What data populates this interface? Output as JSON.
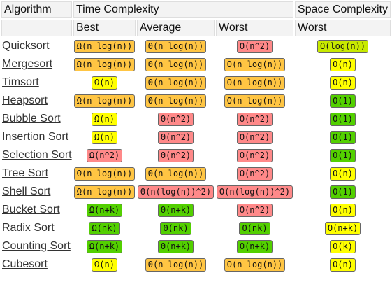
{
  "header": {
    "algorithm": "Algorithm",
    "time_complexity": "Time Complexity",
    "space_complexity": "Space Complexity",
    "best": "Best",
    "average": "Average",
    "worst": "Worst",
    "space_worst": "Worst"
  },
  "colors": {
    "green": "#53d000",
    "yellow-green": "#c8ea00",
    "yellow": "#ffff00",
    "orange": "#ffc543",
    "red": "#ff8989"
  },
  "rows": [
    {
      "name": "Quicksort",
      "best": {
        "text": "Ω(n log(n))",
        "color": "orange"
      },
      "avg": {
        "text": "Θ(n log(n))",
        "color": "orange"
      },
      "worst": {
        "text": "O(n^2)",
        "color": "red"
      },
      "space": {
        "text": "O(log(n))",
        "color": "yellow-green"
      }
    },
    {
      "name": "Mergesort",
      "best": {
        "text": "Ω(n log(n))",
        "color": "orange"
      },
      "avg": {
        "text": "Θ(n log(n))",
        "color": "orange"
      },
      "worst": {
        "text": "O(n log(n))",
        "color": "orange"
      },
      "space": {
        "text": "O(n)",
        "color": "yellow"
      }
    },
    {
      "name": "Timsort",
      "best": {
        "text": "Ω(n)",
        "color": "yellow"
      },
      "avg": {
        "text": "Θ(n log(n))",
        "color": "orange"
      },
      "worst": {
        "text": "O(n log(n))",
        "color": "orange"
      },
      "space": {
        "text": "O(n)",
        "color": "yellow"
      }
    },
    {
      "name": "Heapsort",
      "best": {
        "text": "Ω(n log(n))",
        "color": "orange"
      },
      "avg": {
        "text": "Θ(n log(n))",
        "color": "orange"
      },
      "worst": {
        "text": "O(n log(n))",
        "color": "orange"
      },
      "space": {
        "text": "O(1)",
        "color": "green"
      }
    },
    {
      "name": "Bubble Sort",
      "best": {
        "text": "Ω(n)",
        "color": "yellow"
      },
      "avg": {
        "text": "Θ(n^2)",
        "color": "red"
      },
      "worst": {
        "text": "O(n^2)",
        "color": "red"
      },
      "space": {
        "text": "O(1)",
        "color": "green"
      }
    },
    {
      "name": "Insertion Sort",
      "best": {
        "text": "Ω(n)",
        "color": "yellow"
      },
      "avg": {
        "text": "Θ(n^2)",
        "color": "red"
      },
      "worst": {
        "text": "O(n^2)",
        "color": "red"
      },
      "space": {
        "text": "O(1)",
        "color": "green"
      }
    },
    {
      "name": "Selection Sort",
      "best": {
        "text": "Ω(n^2)",
        "color": "red"
      },
      "avg": {
        "text": "Θ(n^2)",
        "color": "red"
      },
      "worst": {
        "text": "O(n^2)",
        "color": "red"
      },
      "space": {
        "text": "O(1)",
        "color": "green"
      }
    },
    {
      "name": "Tree Sort",
      "best": {
        "text": "Ω(n log(n))",
        "color": "orange"
      },
      "avg": {
        "text": "Θ(n log(n))",
        "color": "orange"
      },
      "worst": {
        "text": "O(n^2)",
        "color": "red"
      },
      "space": {
        "text": "O(n)",
        "color": "yellow"
      }
    },
    {
      "name": "Shell Sort",
      "best": {
        "text": "Ω(n log(n))",
        "color": "orange"
      },
      "avg": {
        "text": "Θ(n(log(n))^2)",
        "color": "red"
      },
      "worst": {
        "text": "O(n(log(n))^2)",
        "color": "red"
      },
      "space": {
        "text": "O(1)",
        "color": "green"
      }
    },
    {
      "name": "Bucket Sort",
      "best": {
        "text": "Ω(n+k)",
        "color": "green"
      },
      "avg": {
        "text": "Θ(n+k)",
        "color": "green"
      },
      "worst": {
        "text": "O(n^2)",
        "color": "red"
      },
      "space": {
        "text": "O(n)",
        "color": "yellow"
      }
    },
    {
      "name": "Radix Sort",
      "best": {
        "text": "Ω(nk)",
        "color": "green"
      },
      "avg": {
        "text": "Θ(nk)",
        "color": "green"
      },
      "worst": {
        "text": "O(nk)",
        "color": "green"
      },
      "space": {
        "text": "O(n+k)",
        "color": "yellow"
      }
    },
    {
      "name": "Counting Sort",
      "best": {
        "text": "Ω(n+k)",
        "color": "green"
      },
      "avg": {
        "text": "Θ(n+k)",
        "color": "green"
      },
      "worst": {
        "text": "O(n+k)",
        "color": "green"
      },
      "space": {
        "text": "O(k)",
        "color": "yellow"
      }
    },
    {
      "name": "Cubesort",
      "best": {
        "text": "Ω(n)",
        "color": "yellow"
      },
      "avg": {
        "text": "Θ(n log(n))",
        "color": "orange"
      },
      "worst": {
        "text": "O(n log(n))",
        "color": "orange"
      },
      "space": {
        "text": "O(n)",
        "color": "yellow"
      }
    }
  ]
}
